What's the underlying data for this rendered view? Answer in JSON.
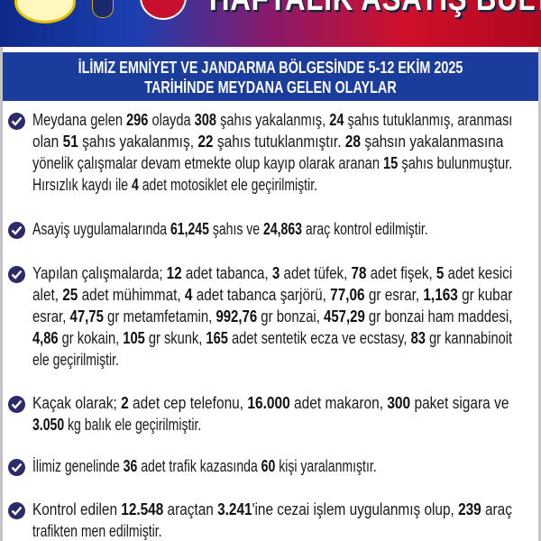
{
  "header": {
    "title": "HAFTALIK ASAYİŞ BÜLTENİ",
    "logos": [
      "provincial-logo",
      "police-emblem",
      "jandarma-emblem"
    ],
    "subtitle_lines": [
      "İLİMİZ EMNİYET VE JANDARMA BÖLGESİNDE 5-12 EKİM 2025",
      "TARİHİNDE MEYDANA GELEN OLAYLAR"
    ]
  },
  "colors": {
    "subtitle_band": "#1a3c9c",
    "bullet": "#2b2a6b",
    "banner_left": "#0d2a8a",
    "banner_right": "#d0102a"
  },
  "bullet_icon": "check-circle-icon",
  "paragraphs": [
    {
      "top": 0,
      "lines": [
        [
          [
            "Meydana gelen ",
            0
          ],
          [
            "296",
            1
          ],
          [
            " olayda ",
            0
          ],
          [
            "308",
            1
          ],
          [
            " şahıs yakalanmış, ",
            0
          ],
          [
            "24",
            1
          ],
          [
            " şahıs tutuklanmış, aranması",
            0
          ]
        ],
        [
          [
            "olan ",
            0
          ],
          [
            "51",
            1
          ],
          [
            " şahıs yakalanmış, ",
            0
          ],
          [
            "22",
            1
          ],
          [
            " şahıs tutuklanmıştır. ",
            0
          ],
          [
            "28",
            1
          ],
          [
            " şahsın yakalanmasına",
            0
          ]
        ],
        [
          [
            "yönelik çalışmalar devam etmekte olup kayıp olarak aranan ",
            0
          ],
          [
            "15",
            1
          ],
          [
            " şahıs bulunmuştur.",
            0
          ]
        ],
        [
          [
            "Hırsızlık kaydı ile ",
            0
          ],
          [
            "4",
            1
          ],
          [
            " adet motosiklet ele geçirilmiştir.",
            0
          ]
        ]
      ]
    },
    {
      "lines": [
        [
          [
            "Asayiş uygulamalarında ",
            0
          ],
          [
            "61,245",
            1
          ],
          [
            " şahıs ve ",
            0
          ],
          [
            "24,863",
            1
          ],
          [
            " araç kontrol edilmiştir.",
            0
          ]
        ]
      ]
    },
    {
      "lines": [
        [
          [
            "Yapılan çalışmalarda; ",
            0
          ],
          [
            "12",
            1
          ],
          [
            " adet tabanca, ",
            0
          ],
          [
            "3",
            1
          ],
          [
            " adet tüfek, ",
            0
          ],
          [
            "78",
            1
          ],
          [
            " adet fişek, ",
            0
          ],
          [
            "5",
            1
          ],
          [
            " adet kesici",
            0
          ]
        ],
        [
          [
            "alet, ",
            0
          ],
          [
            "25",
            1
          ],
          [
            " adet mühimmat, ",
            0
          ],
          [
            "4",
            1
          ],
          [
            " adet tabanca şarjörü, ",
            0
          ],
          [
            "77,06",
            1
          ],
          [
            " gr esrar, ",
            0
          ],
          [
            "1,163",
            1
          ],
          [
            " gr kubar",
            0
          ]
        ],
        [
          [
            "esrar, ",
            0
          ],
          [
            "47,75",
            1
          ],
          [
            " gr metamfetamin, ",
            0
          ],
          [
            "992,76",
            1
          ],
          [
            " gr bonzai, ",
            0
          ],
          [
            "457,29",
            1
          ],
          [
            " gr bonzai ham maddesi,",
            0
          ]
        ],
        [
          [
            "4,86",
            1
          ],
          [
            " gr kokain, ",
            0
          ],
          [
            "105",
            1
          ],
          [
            " gr skunk, ",
            0
          ],
          [
            "165",
            1
          ],
          [
            " adet sentetik ecza ve ecstasy, ",
            0
          ],
          [
            "83",
            1
          ],
          [
            " gr kannabinoit",
            0
          ]
        ],
        [
          [
            "ele geçirilmiştir.",
            0
          ]
        ]
      ]
    },
    {
      "lines": [
        [
          [
            "Kaçak olarak; ",
            0
          ],
          [
            "2",
            1
          ],
          [
            " adet cep telefonu, ",
            0
          ],
          [
            "16.000",
            1
          ],
          [
            " adet makaron, ",
            0
          ],
          [
            "300",
            1
          ],
          [
            " paket sigara  ve",
            0
          ]
        ],
        [
          [
            "3.050",
            1
          ],
          [
            " kg balık ele geçirilmiştir.",
            0
          ]
        ]
      ]
    },
    {
      "lines": [
        [
          [
            "İlimiz genelinde ",
            0
          ],
          [
            "36",
            1
          ],
          [
            " adet trafik kazasında ",
            0
          ],
          [
            "60",
            1
          ],
          [
            " kişi yaralanmıştır.",
            0
          ]
        ]
      ]
    },
    {
      "lines": [
        [
          [
            "Kontrol edilen ",
            0
          ],
          [
            "12.548",
            1
          ],
          [
            " araçtan ",
            0
          ],
          [
            "3.241",
            1
          ],
          [
            "'ine cezai işlem uygulanmış olup, ",
            0
          ],
          [
            "239",
            1
          ],
          [
            " araç",
            0
          ]
        ],
        [
          [
            "trafikten men edilmiştir.",
            0
          ]
        ]
      ]
    }
  ]
}
